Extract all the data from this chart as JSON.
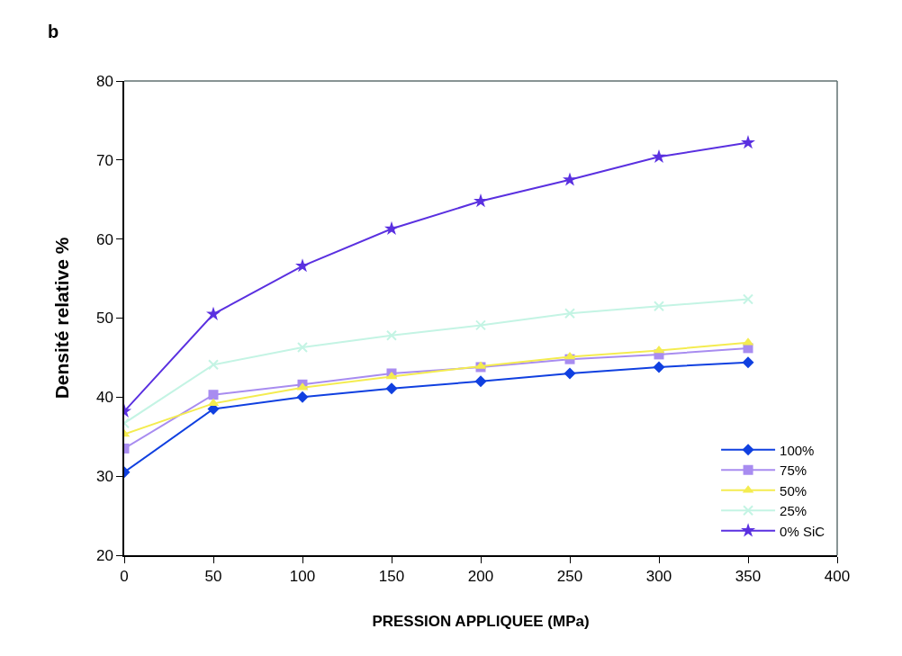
{
  "chart_data": {
    "type": "line",
    "xlabel": "PRESSION APPLIQUEE (MPa)",
    "ylabel": "Densité relative %",
    "annotations": [
      "b"
    ],
    "x": [
      0,
      50,
      100,
      150,
      200,
      250,
      300,
      350
    ],
    "xlim": [
      0,
      400
    ],
    "xticks": [
      0,
      50,
      100,
      150,
      200,
      250,
      300,
      350,
      400
    ],
    "ylim": [
      20,
      80
    ],
    "yticks": [
      20,
      30,
      40,
      50,
      60,
      70,
      80
    ],
    "grid": false,
    "legend": "bottom right",
    "series": [
      {
        "name": "100%",
        "color": "#1040e0",
        "marker": "diamond",
        "values": [
          30.5,
          38.5,
          40.0,
          41.1,
          42.0,
          43.0,
          43.8,
          44.4
        ]
      },
      {
        "name": "75%",
        "color": "#a88cf0",
        "marker": "square",
        "values": [
          33.5,
          40.3,
          41.6,
          43.0,
          43.8,
          44.8,
          45.4,
          46.2
        ]
      },
      {
        "name": "50%",
        "color": "#f4ec50",
        "marker": "triangle",
        "values": [
          35.3,
          39.2,
          41.2,
          42.6,
          43.9,
          45.1,
          45.9,
          46.9
        ]
      },
      {
        "name": "25%",
        "color": "#c4f4e4",
        "marker": "cross",
        "values": [
          36.7,
          44.1,
          46.3,
          47.8,
          49.1,
          50.6,
          51.5,
          52.4
        ]
      },
      {
        "name": "0% SiC",
        "color": "#5a30e0",
        "marker": "star",
        "values": [
          38.2,
          50.5,
          56.6,
          61.3,
          64.8,
          67.5,
          70.4,
          72.2
        ]
      }
    ]
  }
}
